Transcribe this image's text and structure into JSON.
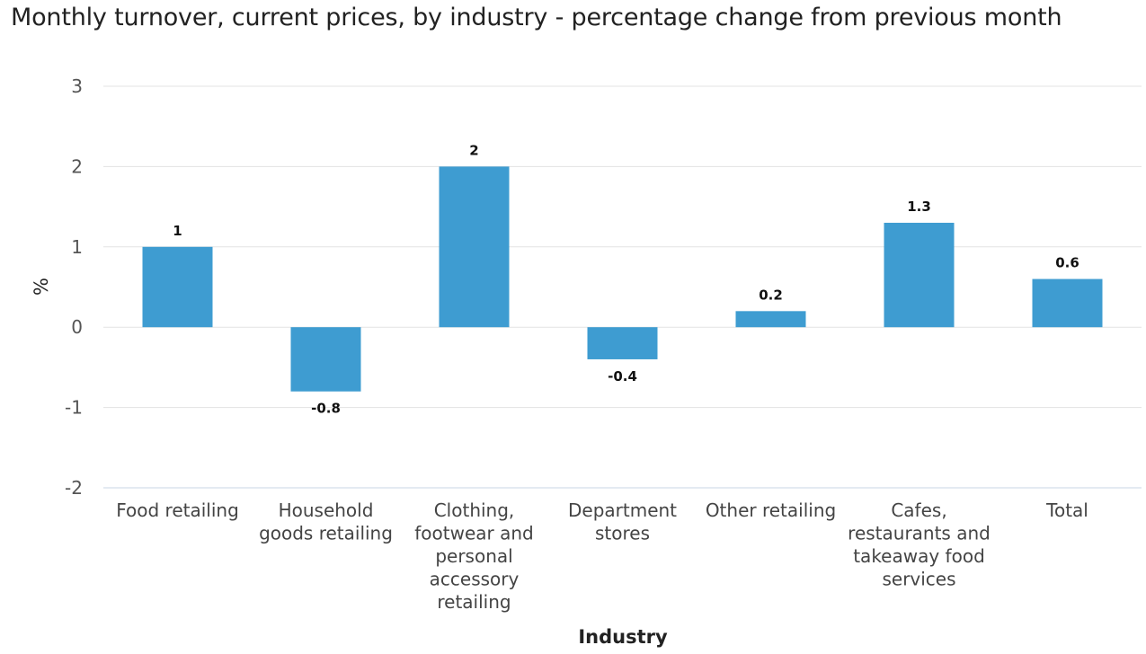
{
  "chart_data": {
    "type": "bar",
    "title": "Monthly turnover, current prices, by industry - percentage change from previous month",
    "xlabel": "Industry",
    "ylabel": "%",
    "ylim": [
      -2,
      3
    ],
    "yticks": [
      3,
      2,
      1,
      0,
      -1,
      -2
    ],
    "grid": true,
    "categories": [
      [
        "Food retailing"
      ],
      [
        "Household",
        "goods retailing"
      ],
      [
        "Clothing,",
        "footwear and",
        "personal",
        "accessory",
        "retailing"
      ],
      [
        "Department",
        "stores"
      ],
      [
        "Other retailing"
      ],
      [
        "Cafes,",
        "restaurants and",
        "takeaway food",
        "services"
      ],
      [
        "Total"
      ]
    ],
    "values": [
      1,
      -0.8,
      2,
      -0.4,
      0.2,
      1.3,
      0.6
    ],
    "value_labels": [
      "1",
      "-0.8",
      "2",
      "-0.4",
      "0.2",
      "1.3",
      "0.6"
    ],
    "bar_color": "#3e9cd1",
    "grid_color": "#e3e3e3",
    "baseline_color": "#c9d6e6"
  }
}
